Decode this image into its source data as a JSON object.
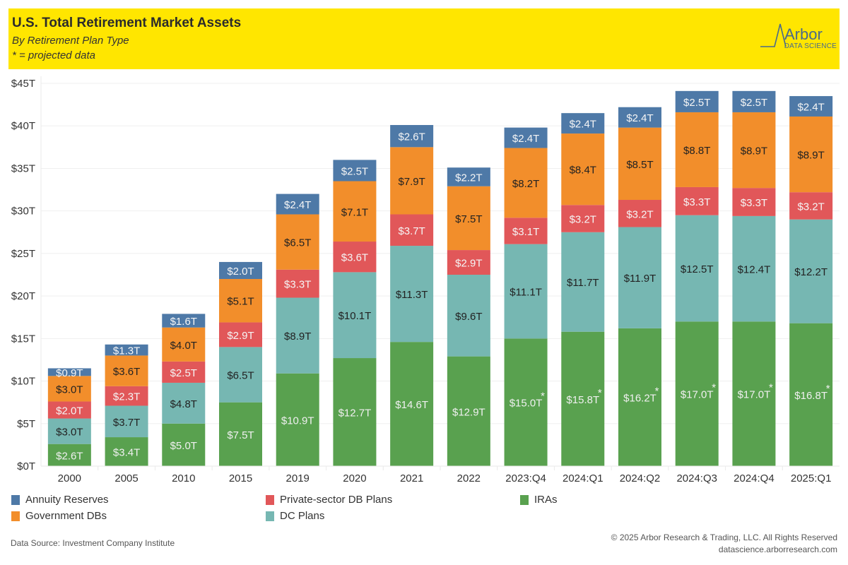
{
  "header": {
    "title": "U.S. Total Retirement Market Assets",
    "subtitle": "By Retirement Plan Type",
    "note": "* = projected data",
    "logo_text": "Arbor",
    "logo_subtext": "DATA SCIENCE",
    "background_color": "#ffe600"
  },
  "chart_data": {
    "type": "bar",
    "stacked": true,
    "title": "U.S. Total Retirement Market Assets",
    "subtitle": "By Retirement Plan Type",
    "xlabel": "",
    "ylabel": "",
    "ylim": [
      0,
      45
    ],
    "y_unit": "Trillions USD",
    "yticks": [
      0,
      5,
      10,
      15,
      20,
      25,
      30,
      35,
      40,
      45
    ],
    "ytick_labels": [
      "$0T",
      "$5T",
      "$10T",
      "$15T",
      "$20T",
      "$25T",
      "$30T",
      "$35T",
      "$40T",
      "$45T"
    ],
    "grid": true,
    "legend_position": "bottom",
    "categories": [
      "2000",
      "2005",
      "2010",
      "2015",
      "2019",
      "2020",
      "2021",
      "2022",
      "2023:Q4",
      "2024:Q1",
      "2024:Q2",
      "2024:Q3",
      "2024:Q4",
      "2025:Q1"
    ],
    "projected": [
      false,
      false,
      false,
      false,
      false,
      false,
      false,
      false,
      true,
      true,
      true,
      true,
      true,
      true
    ],
    "series": [
      {
        "name": "IRAs",
        "color": "#59a14f",
        "label_color": "#f0f0f0",
        "values": [
          2.6,
          3.4,
          5.0,
          7.5,
          10.9,
          12.7,
          14.6,
          12.9,
          15.0,
          15.8,
          16.2,
          17.0,
          17.0,
          16.8
        ]
      },
      {
        "name": "DC Plans",
        "color": "#76b7b2",
        "label_color": "#222222",
        "values": [
          3.0,
          3.7,
          4.8,
          6.5,
          8.9,
          10.1,
          11.3,
          9.6,
          11.1,
          11.7,
          11.9,
          12.5,
          12.4,
          12.2
        ]
      },
      {
        "name": "Private-sector DB Plans",
        "color": "#e15759",
        "label_color": "#f5f5f5",
        "values": [
          2.0,
          2.3,
          2.5,
          2.9,
          3.3,
          3.6,
          3.7,
          2.9,
          3.1,
          3.2,
          3.2,
          3.3,
          3.3,
          3.2
        ]
      },
      {
        "name": "Government DBs",
        "color": "#f28e2b",
        "label_color": "#222222",
        "values": [
          3.0,
          3.6,
          4.0,
          5.1,
          6.5,
          7.1,
          7.9,
          7.5,
          8.2,
          8.4,
          8.5,
          8.8,
          8.9,
          8.9
        ]
      },
      {
        "name": "Annuity Reserves",
        "color": "#4e79a7",
        "label_color": "#f5f5f5",
        "values": [
          0.9,
          1.3,
          1.6,
          2.0,
          2.4,
          2.5,
          2.6,
          2.2,
          2.4,
          2.4,
          2.4,
          2.5,
          2.5,
          2.4
        ]
      }
    ],
    "label_format": "$%.1fT",
    "projected_marker": "*"
  },
  "legend": {
    "items": [
      {
        "label": "Annuity Reserves",
        "color": "#4e79a7"
      },
      {
        "label": "Government DBs",
        "color": "#f28e2b"
      },
      {
        "label": "Private-sector DB Plans",
        "color": "#e15759"
      },
      {
        "label": "DC Plans",
        "color": "#76b7b2"
      },
      {
        "label": "IRAs",
        "color": "#59a14f"
      }
    ]
  },
  "footer": {
    "source": "Data Source: Investment Company Institute",
    "copyright": "© 2025 Arbor Research & Trading, LLC. All Rights Reserved",
    "website": "datascience.arborresearch.com"
  }
}
